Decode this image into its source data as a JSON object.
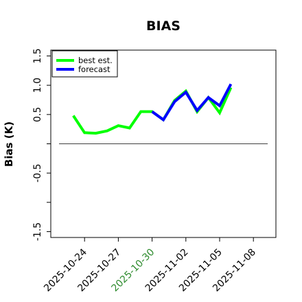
{
  "chart_data": {
    "type": "line",
    "title": "BIAS",
    "xlabel": "",
    "ylabel": "Bias (K)",
    "ylim": [
      -1.6,
      1.6
    ],
    "yticks": [
      -1.5,
      -1.0,
      -0.5,
      0.0,
      0.5,
      1.0,
      1.5
    ],
    "ytick_labels": [
      "-1.5",
      "",
      "-0.5",
      "",
      "0.5",
      "1.0",
      "1.5"
    ],
    "xlim": [
      "2025-10-21",
      "2025-11-10"
    ],
    "xticks": [
      "2025-10-24",
      "2025-10-27",
      "2025-10-30",
      "2025-11-02",
      "2025-11-05",
      "2025-11-08"
    ],
    "xtick_colors": [
      "#000000",
      "#000000",
      "#2e8b2e",
      "#000000",
      "#000000",
      "#000000"
    ],
    "zero_line": 0.0,
    "grid": false,
    "legend_position": "top-left",
    "series": [
      {
        "name": "best est.",
        "color": "#00ff00",
        "x": [
          "2025-10-23",
          "2025-10-24",
          "2025-10-25",
          "2025-10-26",
          "2025-10-27",
          "2025-10-28",
          "2025-10-29",
          "2025-10-30",
          "2025-10-31",
          "2025-11-01",
          "2025-11-02",
          "2025-11-03",
          "2025-11-04",
          "2025-11-05",
          "2025-11-06"
        ],
        "values": [
          0.48,
          0.19,
          0.18,
          0.22,
          0.31,
          0.27,
          0.55,
          0.55,
          0.41,
          0.74,
          0.9,
          0.55,
          0.79,
          0.53,
          0.96
        ]
      },
      {
        "name": "forecast",
        "color": "#0000ff",
        "x": [
          "2025-10-30",
          "2025-10-31",
          "2025-11-01",
          "2025-11-02",
          "2025-11-03",
          "2025-11-04",
          "2025-11-05",
          "2025-11-06"
        ],
        "values": [
          0.55,
          0.41,
          0.72,
          0.88,
          0.57,
          0.79,
          0.65,
          1.02
        ]
      }
    ]
  }
}
